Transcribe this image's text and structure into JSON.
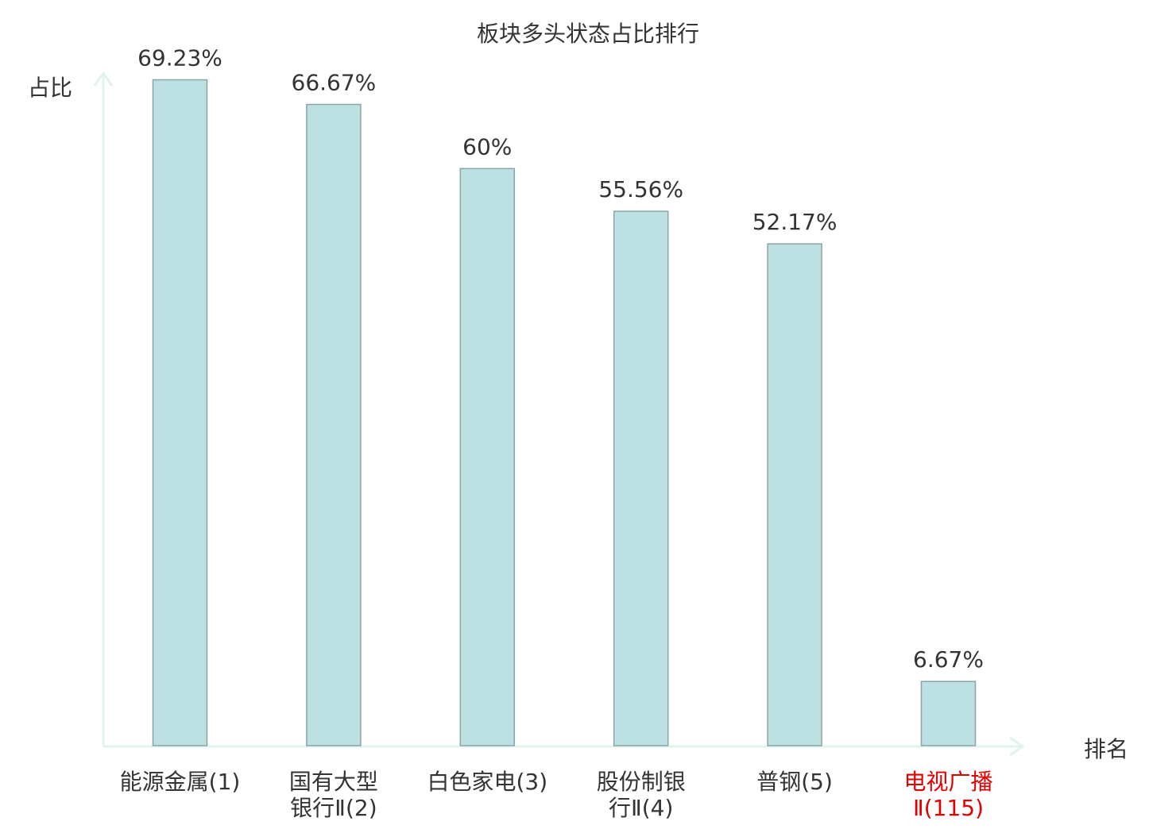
{
  "chart_data": {
    "type": "bar",
    "title": "板块多头状态占比排行",
    "ylabel": "占比",
    "xlabel": "排名",
    "ylim": [
      0,
      70
    ],
    "categories": [
      {
        "lines": [
          "能源金属(1)"
        ],
        "highlight": false
      },
      {
        "lines": [
          "国有大型",
          "银行Ⅱ(2)"
        ],
        "highlight": false
      },
      {
        "lines": [
          "白色家电(3)"
        ],
        "highlight": false
      },
      {
        "lines": [
          "股份制银",
          "行Ⅱ(4)"
        ],
        "highlight": false
      },
      {
        "lines": [
          "普钢(5)"
        ],
        "highlight": false
      },
      {
        "lines": [
          "电视广播",
          "Ⅱ(115)"
        ],
        "highlight": true
      }
    ],
    "values": [
      69.23,
      66.67,
      60,
      55.56,
      52.17,
      6.67
    ],
    "value_labels": [
      "69.23%",
      "66.67%",
      "60%",
      "55.56%",
      "52.17%",
      "6.67%"
    ],
    "grid": false,
    "legend": "none",
    "colors": {
      "bar_fill": "#bde1e3",
      "bar_stroke": "#8aa5a8",
      "axis": "#e0f3f0",
      "text": "#333333",
      "highlight_text": "#e00000"
    }
  }
}
